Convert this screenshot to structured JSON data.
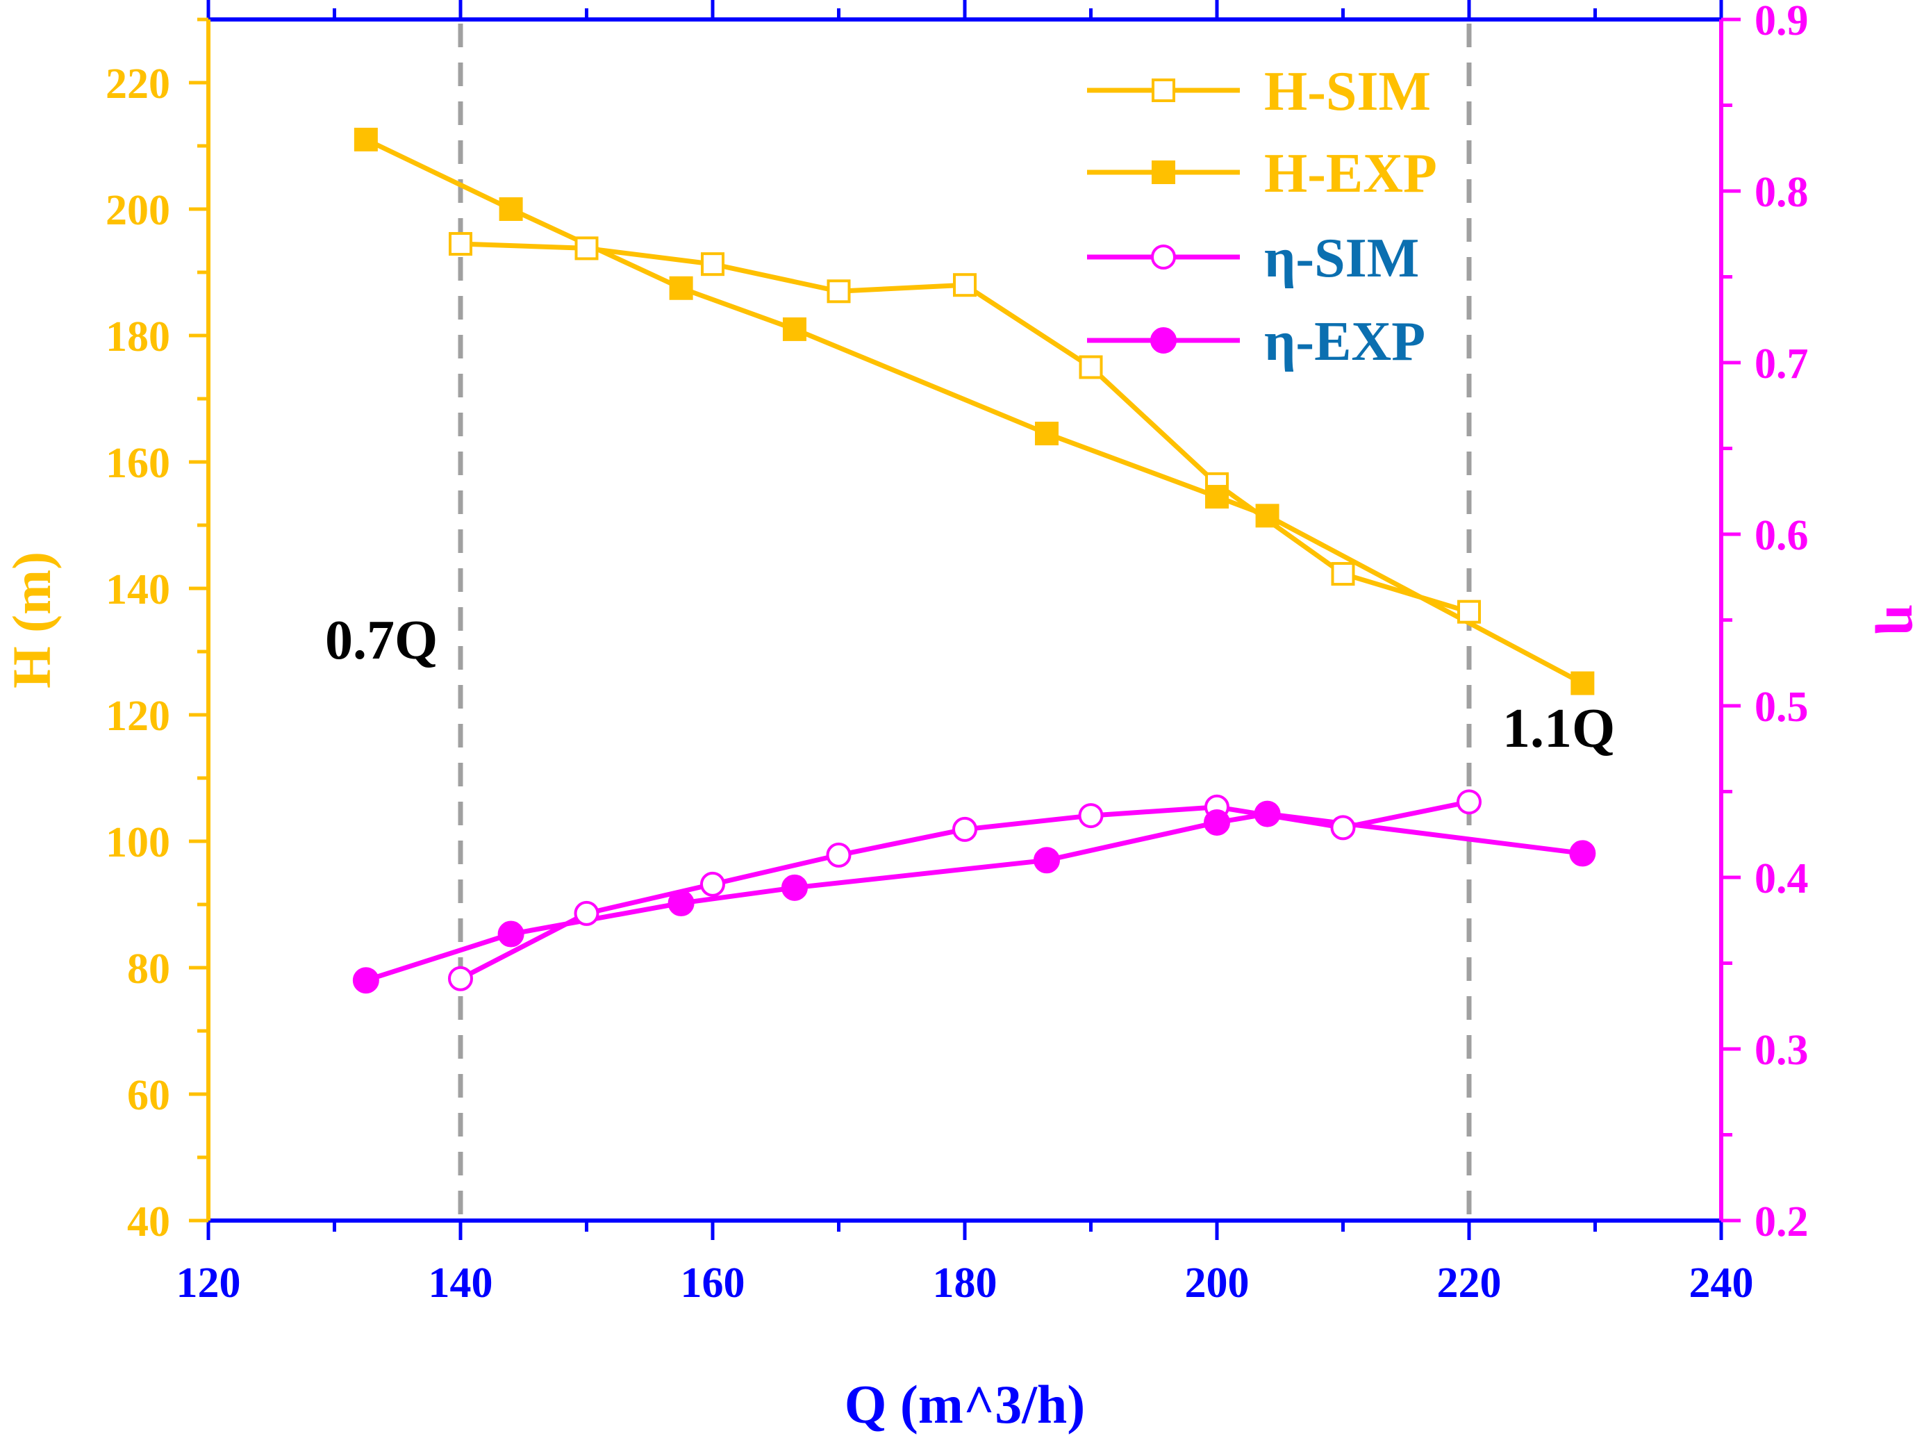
{
  "chart_data": {
    "type": "line",
    "xlabel": "Q (m^3/h)",
    "ylabel_left": "H (m)",
    "ylabel_right": "η",
    "xlim": [
      120,
      240
    ],
    "ylim_left": [
      40,
      230
    ],
    "ylim_right": [
      0.2,
      0.9
    ],
    "x_ticks": [
      "120",
      "140",
      "160",
      "180",
      "200",
      "220",
      "240"
    ],
    "y_left_ticks": [
      "40",
      "60",
      "80",
      "100",
      "120",
      "140",
      "160",
      "180",
      "200",
      "220"
    ],
    "y_right_ticks": [
      "0.2",
      "0.3",
      "0.4",
      "0.5",
      "0.6",
      "0.7",
      "0.8",
      "0.9"
    ],
    "series": [
      {
        "name": "H-SIM",
        "axis": "left",
        "marker": "square-open",
        "color": "#FFC000",
        "x": [
          140,
          150,
          160,
          170,
          180,
          190,
          200,
          210,
          220
        ],
        "y": [
          194.5,
          193.8,
          191.3,
          187,
          188,
          175,
          156.5,
          142.3,
          136.3
        ]
      },
      {
        "name": "H-EXP",
        "axis": "left",
        "marker": "square-filled",
        "color": "#FFC000",
        "x": [
          132.5,
          144,
          157.5,
          166.5,
          186.5,
          200,
          204,
          229
        ],
        "y": [
          211,
          200,
          187.5,
          181,
          164.5,
          154.5,
          151.5,
          125
        ]
      },
      {
        "name": "η-SIM",
        "axis": "right",
        "marker": "circle-open",
        "color": "#FF00FF",
        "x": [
          140,
          150,
          160,
          170,
          180,
          190,
          200,
          210,
          220
        ],
        "y": [
          0.341,
          0.379,
          0.396,
          0.413,
          0.428,
          0.436,
          0.441,
          0.429,
          0.444
        ]
      },
      {
        "name": "η-EXP",
        "axis": "right",
        "marker": "circle-filled",
        "color": "#FF00FF",
        "x": [
          132.5,
          144,
          157.5,
          166.5,
          186.5,
          200,
          204,
          229
        ],
        "y": [
          0.34,
          0.367,
          0.385,
          0.394,
          0.41,
          0.432,
          0.437,
          0.414
        ]
      }
    ],
    "reference_lines": [
      {
        "x": 140,
        "label": "0.7Q"
      },
      {
        "x": 220,
        "label": "1.1Q"
      }
    ],
    "legend_position": "top-right",
    "colors": {
      "left_axis": "#FFC000",
      "right_axis": "#FF00FF",
      "bottom_axis": "#0000FF",
      "legend_eta_text": "#0B6FB0",
      "reference": "#A0A0A0"
    }
  }
}
